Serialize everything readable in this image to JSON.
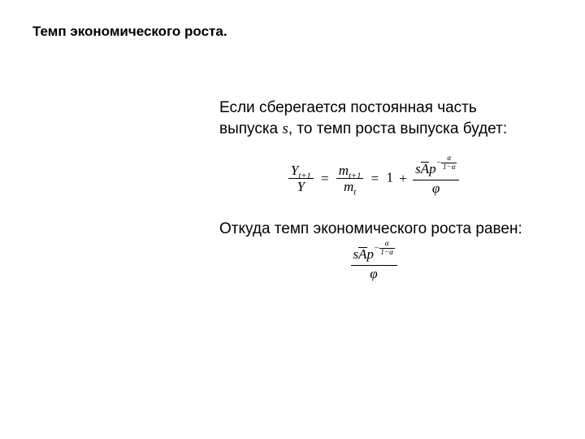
{
  "heading": "Темп экономического роста.",
  "paragraph1_pre": "Если сберегается постоянная часть выпуска ",
  "paragraph1_s": "s",
  "paragraph1_post": ", то темп роста выпуска будет:",
  "paragraph2": "Откуда темп экономического роста равен:",
  "formula1": {
    "lhs_num_var": "Y",
    "lhs_num_sub": "t+1",
    "lhs_den_var": "Y",
    "mid_num_var": "m",
    "mid_num_sub": "t+1",
    "mid_den_var": "m",
    "mid_den_sub": "t",
    "one": "1",
    "plus": "+",
    "eq": "=",
    "s": "s",
    "A": "A",
    "p": "p",
    "exp_minus": "−",
    "exp_num": "α",
    "exp_den_pre": "1−",
    "exp_den_a": "α",
    "phi": "φ"
  },
  "formula2": {
    "s": "s",
    "A": "A",
    "p": "p",
    "exp_minus": "−",
    "exp_num": "α",
    "exp_den_pre": "1−",
    "exp_den_a": "α",
    "phi": "φ"
  },
  "style": {
    "background_color": "#ffffff",
    "text_color": "#000000",
    "heading_fontsize_pt": 13,
    "body_fontsize_pt": 14,
    "math_font": "Times New Roman",
    "body_font": "Arial"
  }
}
